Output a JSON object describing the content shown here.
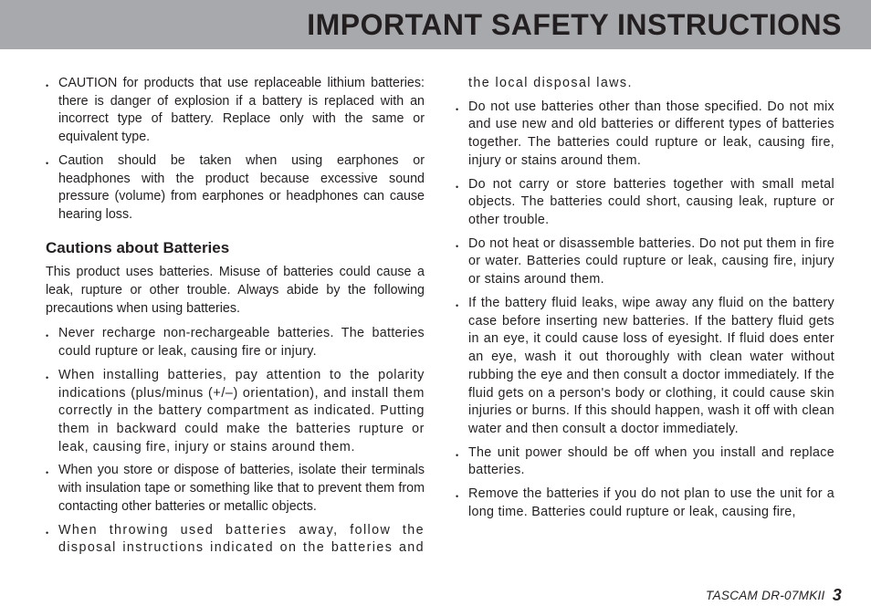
{
  "header": {
    "title": "IMPORTANT SAFETY INSTRUCTIONS"
  },
  "topBullets": [
    "CAUTION for products that use replaceable lithium  batteries: there is danger of explosion if a battery is replaced with an incorrect type of battery. Replace only with the same or equivalent type.",
    "Caution should be taken when using earphones or headphones with the product because excessive sound pressure (volume) from earphones or headphones can cause hearing loss."
  ],
  "section": {
    "heading": "Cautions about Batteries",
    "intro": "This product uses batteries. Misuse of batteries could cause a leak, rupture or other trouble. Always abide by the following precautions when using batteries.",
    "bullets": [
      {
        "text": "Never recharge non-rechargeable batteries. The batteries could rupture or leak, causing fire or injury.",
        "cls": "ls3"
      },
      {
        "text": "When installing batteries, pay attention to the polarity indications (plus/minus (+/–) orientation), and install them correctly in the battery compartment as indicated. Putting them in backward could make the batteries rupture or leak, causing fire, injury or stains around them.",
        "cls": "ls1"
      },
      {
        "text": "When you store or dispose of batteries, isolate their terminals with insulation tape or something like that to prevent them from contacting other batteries or metallic objects.",
        "cls": ""
      },
      {
        "text": "When throwing used batteries away, follow the disposal instructions indicated on the batteries and the local disposal laws.",
        "cls": "ls2"
      },
      {
        "text": "Do not use batteries other than those specified. Do not mix and use new and old batteries or different types of batteries together. The batteries could rupture or leak, causing fire, injury or stains around them.",
        "cls": "ls3"
      },
      {
        "text": "Do not carry or store batteries together with small metal objects. The batteries could short, causing leak, rupture or other trouble.",
        "cls": "ls3"
      },
      {
        "text": "Do not heat or disassemble batteries. Do not put them in fire or water.  Batteries could rupture or leak, causing fire, injury or stains around them.",
        "cls": "ls3"
      },
      {
        "text": "If the battery fluid leaks, wipe away any fluid on the battery case before inserting new batteries. If the battery fluid gets in an eye, it could cause loss of eyesight. If fluid does enter an eye, wash it out thoroughly with clean water without rubbing the eye and then consult a doctor immediately. If the fluid gets on a person's body or clothing, it could cause skin injuries or burns. If this should happen, wash it off with clean water and then consult a doctor immediately.",
        "cls": "ls3"
      },
      {
        "text": "The unit power should be off when you install and replace batteries.",
        "cls": "ls3"
      },
      {
        "text": "Remove the batteries if you do not plan to use the unit for a long time.  Batteries could rupture or leak, causing fire,",
        "cls": "ls3"
      }
    ]
  },
  "footer": {
    "model": "TASCAM DR-07MKII",
    "pageNumber": "3"
  }
}
